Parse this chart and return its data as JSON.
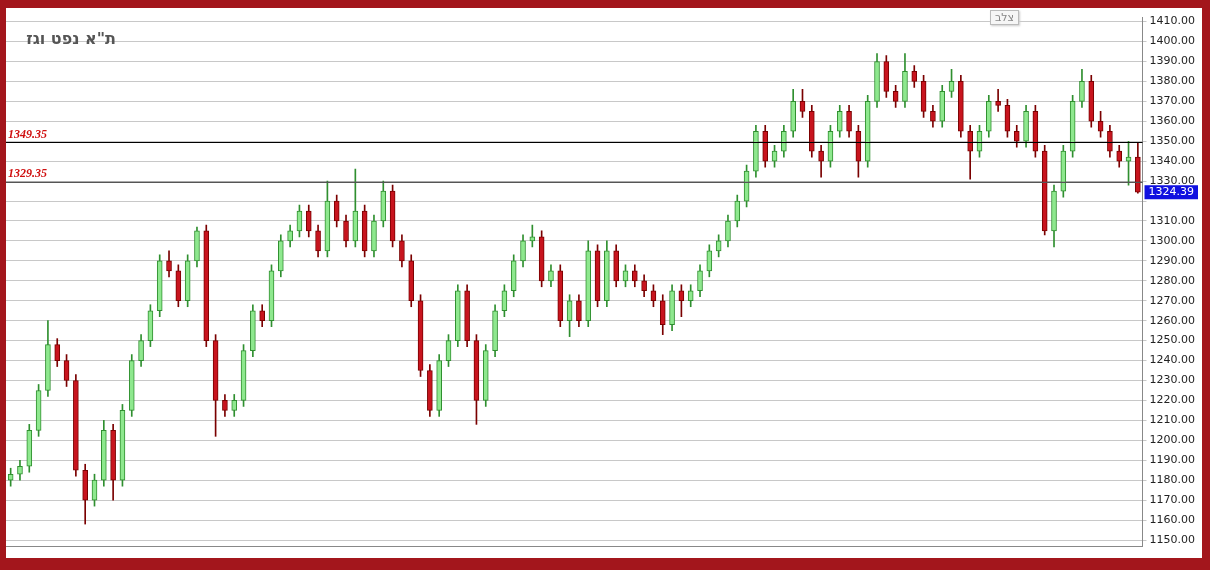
{
  "chart_data": {
    "type": "candlestick",
    "title": "ת\"א נפט וגז",
    "categories": [
      null,
      null,
      null,
      null,
      null,
      null,
      null,
      null,
      null,
      null,
      null,
      null,
      null,
      null,
      null,
      null,
      null,
      null,
      null,
      null,
      null,
      null,
      null,
      null,
      null,
      null,
      null,
      null,
      null,
      null,
      null,
      null,
      null,
      null,
      null,
      null,
      null,
      null,
      null,
      null,
      null,
      null,
      null,
      null,
      null,
      null,
      null,
      null,
      null,
      null,
      null,
      null,
      null,
      null,
      null,
      null,
      null,
      null,
      null,
      null,
      null,
      null,
      null,
      null,
      null,
      null,
      null,
      null,
      null,
      null,
      null,
      null,
      null,
      null,
      null,
      null,
      null,
      null,
      null,
      null,
      null,
      null,
      null,
      null,
      null,
      null,
      null,
      null,
      null,
      null,
      null,
      null,
      null,
      null,
      null,
      null,
      null,
      null,
      null,
      null,
      null,
      null,
      null,
      null,
      null,
      null,
      null,
      null,
      null,
      null,
      null,
      null,
      null,
      null,
      null,
      null,
      null,
      null,
      null,
      null,
      null,
      null
    ],
    "ohlc": [
      [
        1180,
        1186,
        1177,
        1183
      ],
      [
        1183,
        1190,
        1180,
        1187
      ],
      [
        1187,
        1208,
        1184,
        1205
      ],
      [
        1205,
        1228,
        1202,
        1225
      ],
      [
        1225,
        1260,
        1222,
        1248
      ],
      [
        1248,
        1251,
        1237,
        1240
      ],
      [
        1240,
        1243,
        1227,
        1230
      ],
      [
        1230,
        1233,
        1182,
        1185
      ],
      [
        1185,
        1188,
        1158,
        1170
      ],
      [
        1170,
        1183,
        1167,
        1180
      ],
      [
        1180,
        1210,
        1177,
        1205
      ],
      [
        1205,
        1208,
        1170,
        1180
      ],
      [
        1180,
        1218,
        1177,
        1215
      ],
      [
        1215,
        1243,
        1212,
        1240
      ],
      [
        1240,
        1253,
        1237,
        1250
      ],
      [
        1250,
        1268,
        1247,
        1265
      ],
      [
        1265,
        1293,
        1262,
        1290
      ],
      [
        1290,
        1295,
        1282,
        1285
      ],
      [
        1285,
        1288,
        1267,
        1270
      ],
      [
        1270,
        1293,
        1267,
        1290
      ],
      [
        1290,
        1307,
        1287,
        1305
      ],
      [
        1305,
        1308,
        1247,
        1250
      ],
      [
        1250,
        1253,
        1202,
        1220
      ],
      [
        1220,
        1223,
        1212,
        1215
      ],
      [
        1215,
        1223,
        1212,
        1220
      ],
      [
        1220,
        1248,
        1217,
        1245
      ],
      [
        1245,
        1268,
        1242,
        1265
      ],
      [
        1265,
        1268,
        1257,
        1260
      ],
      [
        1260,
        1288,
        1257,
        1285
      ],
      [
        1285,
        1303,
        1282,
        1300
      ],
      [
        1300,
        1308,
        1297,
        1305
      ],
      [
        1305,
        1318,
        1302,
        1315
      ],
      [
        1315,
        1318,
        1302,
        1305
      ],
      [
        1305,
        1308,
        1292,
        1295
      ],
      [
        1295,
        1330,
        1292,
        1320
      ],
      [
        1320,
        1323,
        1307,
        1310
      ],
      [
        1310,
        1313,
        1297,
        1300
      ],
      [
        1300,
        1336,
        1297,
        1315
      ],
      [
        1315,
        1318,
        1292,
        1295
      ],
      [
        1295,
        1313,
        1292,
        1310
      ],
      [
        1310,
        1330,
        1307,
        1325
      ],
      [
        1325,
        1328,
        1297,
        1300
      ],
      [
        1300,
        1303,
        1287,
        1290
      ],
      [
        1290,
        1293,
        1267,
        1270
      ],
      [
        1270,
        1273,
        1232,
        1235
      ],
      [
        1235,
        1238,
        1212,
        1215
      ],
      [
        1215,
        1243,
        1212,
        1240
      ],
      [
        1240,
        1253,
        1237,
        1250
      ],
      [
        1250,
        1278,
        1247,
        1275
      ],
      [
        1275,
        1278,
        1247,
        1250
      ],
      [
        1250,
        1253,
        1208,
        1220
      ],
      [
        1220,
        1248,
        1217,
        1245
      ],
      [
        1245,
        1268,
        1242,
        1265
      ],
      [
        1265,
        1278,
        1262,
        1275
      ],
      [
        1275,
        1293,
        1272,
        1290
      ],
      [
        1290,
        1303,
        1287,
        1300
      ],
      [
        1300,
        1308,
        1297,
        1302
      ],
      [
        1302,
        1305,
        1277,
        1280
      ],
      [
        1280,
        1288,
        1277,
        1285
      ],
      [
        1285,
        1288,
        1257,
        1260
      ],
      [
        1260,
        1273,
        1252,
        1270
      ],
      [
        1270,
        1273,
        1257,
        1260
      ],
      [
        1260,
        1300,
        1257,
        1295
      ],
      [
        1295,
        1298,
        1267,
        1270
      ],
      [
        1270,
        1300,
        1267,
        1295
      ],
      [
        1295,
        1298,
        1277,
        1280
      ],
      [
        1280,
        1288,
        1277,
        1285
      ],
      [
        1285,
        1288,
        1277,
        1280
      ],
      [
        1280,
        1283,
        1272,
        1275
      ],
      [
        1275,
        1278,
        1267,
        1270
      ],
      [
        1270,
        1273,
        1253,
        1258
      ],
      [
        1258,
        1278,
        1255,
        1275
      ],
      [
        1275,
        1278,
        1262,
        1270
      ],
      [
        1270,
        1278,
        1267,
        1275
      ],
      [
        1275,
        1288,
        1272,
        1285
      ],
      [
        1285,
        1298,
        1282,
        1295
      ],
      [
        1295,
        1303,
        1292,
        1300
      ],
      [
        1300,
        1313,
        1297,
        1310
      ],
      [
        1310,
        1323,
        1307,
        1320
      ],
      [
        1320,
        1338,
        1317,
        1335
      ],
      [
        1335,
        1358,
        1332,
        1355
      ],
      [
        1355,
        1358,
        1337,
        1340
      ],
      [
        1340,
        1348,
        1337,
        1345
      ],
      [
        1345,
        1358,
        1342,
        1355
      ],
      [
        1355,
        1376,
        1352,
        1370
      ],
      [
        1370,
        1376,
        1362,
        1365
      ],
      [
        1365,
        1368,
        1342,
        1345
      ],
      [
        1345,
        1348,
        1332,
        1340
      ],
      [
        1340,
        1358,
        1337,
        1355
      ],
      [
        1355,
        1368,
        1352,
        1365
      ],
      [
        1365,
        1368,
        1352,
        1355
      ],
      [
        1355,
        1358,
        1332,
        1340
      ],
      [
        1340,
        1373,
        1337,
        1370
      ],
      [
        1370,
        1394,
        1367,
        1390
      ],
      [
        1390,
        1393,
        1372,
        1375
      ],
      [
        1375,
        1378,
        1367,
        1370
      ],
      [
        1370,
        1394,
        1367,
        1385
      ],
      [
        1385,
        1388,
        1377,
        1380
      ],
      [
        1380,
        1383,
        1362,
        1365
      ],
      [
        1365,
        1368,
        1357,
        1360
      ],
      [
        1360,
        1378,
        1357,
        1375
      ],
      [
        1375,
        1386,
        1372,
        1380
      ],
      [
        1380,
        1383,
        1352,
        1355
      ],
      [
        1355,
        1358,
        1331,
        1345
      ],
      [
        1345,
        1358,
        1342,
        1355
      ],
      [
        1355,
        1373,
        1352,
        1370
      ],
      [
        1370,
        1376,
        1365,
        1368
      ],
      [
        1368,
        1371,
        1352,
        1355
      ],
      [
        1355,
        1358,
        1347,
        1350
      ],
      [
        1350,
        1368,
        1347,
        1365
      ],
      [
        1365,
        1368,
        1342,
        1345
      ],
      [
        1345,
        1348,
        1303,
        1305
      ],
      [
        1305,
        1328,
        1297,
        1325
      ],
      [
        1325,
        1348,
        1322,
        1345
      ],
      [
        1345,
        1373,
        1342,
        1370
      ],
      [
        1370,
        1386,
        1367,
        1380
      ],
      [
        1380,
        1383,
        1357,
        1360
      ],
      [
        1360,
        1365,
        1352,
        1355
      ],
      [
        1355,
        1358,
        1342,
        1345
      ],
      [
        1345,
        1348,
        1337,
        1340
      ],
      [
        1340,
        1350,
        1328,
        1342
      ],
      [
        1342,
        1349,
        1324,
        1324.39
      ]
    ],
    "ylim": [
      1147,
      1412
    ],
    "yticks": [
      {
        "value": 1150,
        "label": "1150.00"
      },
      {
        "value": 1160,
        "label": "1160.00"
      },
      {
        "value": 1170,
        "label": "1170.00"
      },
      {
        "value": 1180,
        "label": "1180.00"
      },
      {
        "value": 1190,
        "label": "1190.00"
      },
      {
        "value": 1200,
        "label": "1200.00"
      },
      {
        "value": 1210,
        "label": "1210.00"
      },
      {
        "value": 1220,
        "label": "1220.00"
      },
      {
        "value": 1230,
        "label": "1230.00"
      },
      {
        "value": 1240,
        "label": "1240.00"
      },
      {
        "value": 1250,
        "label": "1250.00"
      },
      {
        "value": 1260,
        "label": "1260.00"
      },
      {
        "value": 1270,
        "label": "1270.00"
      },
      {
        "value": 1280,
        "label": "1280.00"
      },
      {
        "value": 1290,
        "label": "1290.00"
      },
      {
        "value": 1300,
        "label": "1300.00"
      },
      {
        "value": 1310,
        "label": "1310.00"
      },
      {
        "value": 1320,
        "label": null
      },
      {
        "value": 1330,
        "label": "1330.00"
      },
      {
        "value": 1340,
        "label": "1340.00"
      },
      {
        "value": 1350,
        "label": "1350.00"
      },
      {
        "value": 1360,
        "label": "1360.00"
      },
      {
        "value": 1370,
        "label": "1370.00"
      },
      {
        "value": 1380,
        "label": "1380.00"
      },
      {
        "value": 1390,
        "label": "1390.00"
      },
      {
        "value": 1400,
        "label": "1400.00"
      },
      {
        "value": 1410,
        "label": "1410.00"
      }
    ],
    "ref_lines": [
      {
        "axis": "y",
        "value": 1349.35,
        "label": "1349.35",
        "color": "#000000"
      },
      {
        "axis": "y",
        "value": 1329.35,
        "label": "1329.35",
        "color": "#555555"
      }
    ],
    "annotations": [
      "צלב",
      "1324.39"
    ],
    "grid": "y",
    "legend": false,
    "tick_labels": "y"
  }
}
